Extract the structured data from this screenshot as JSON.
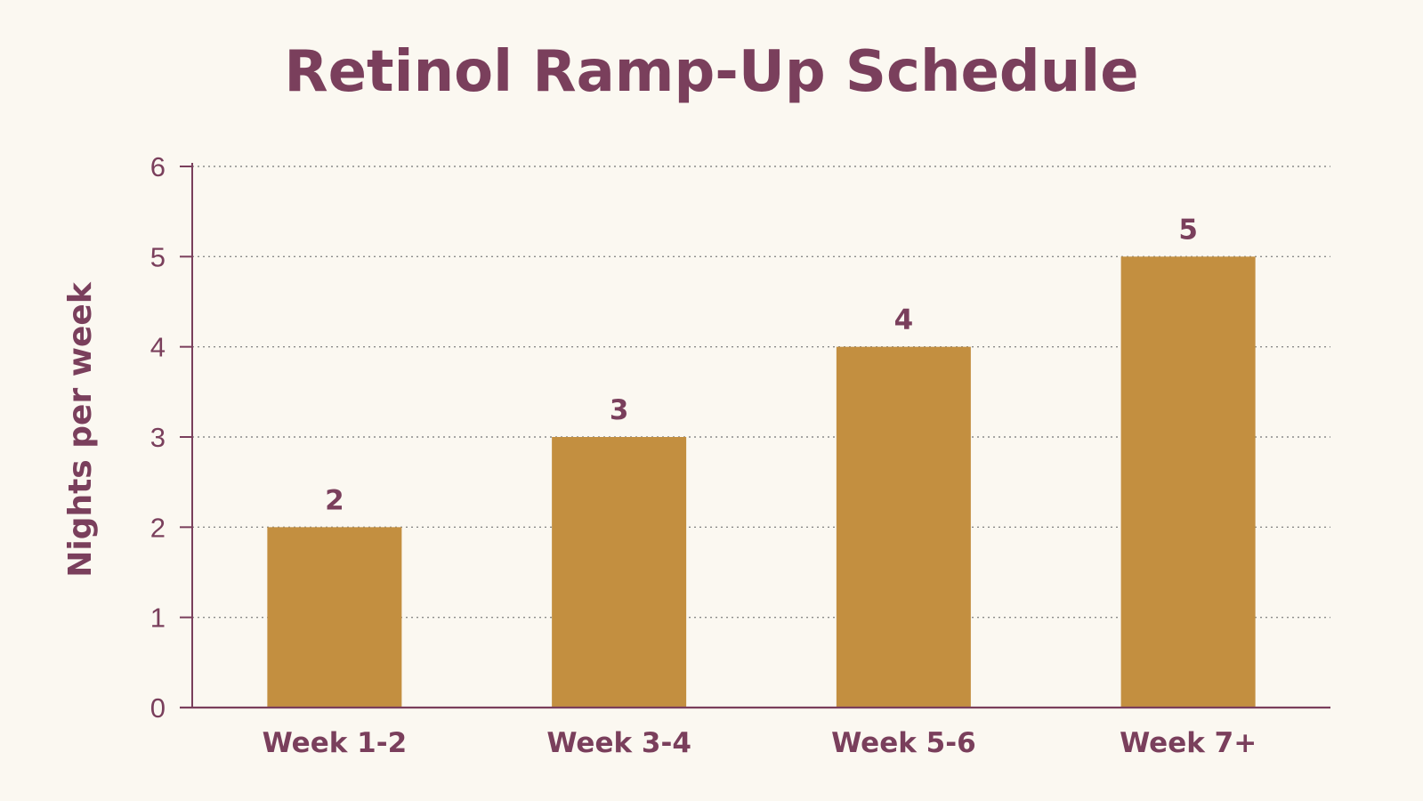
{
  "chart_data": {
    "type": "bar",
    "title": "Retinol Ramp-Up Schedule",
    "xlabel": "",
    "ylabel": "Nights per week",
    "categories": [
      "Week 1-2",
      "Week 3-4",
      "Week 5-6",
      "Week 7+"
    ],
    "values": [
      2,
      3,
      4,
      5
    ],
    "ylim": [
      0,
      6
    ],
    "yticks": [
      0,
      1,
      2,
      3,
      4,
      5,
      6
    ],
    "grid": "horizontal-dotted",
    "legend": "none",
    "data_labels": true
  },
  "colors": {
    "background": "#fbf8f1",
    "text": "#7a3f5c",
    "bar": "#c38f40",
    "axis": "#7a3f5c",
    "grid": "#8a8a8a"
  }
}
